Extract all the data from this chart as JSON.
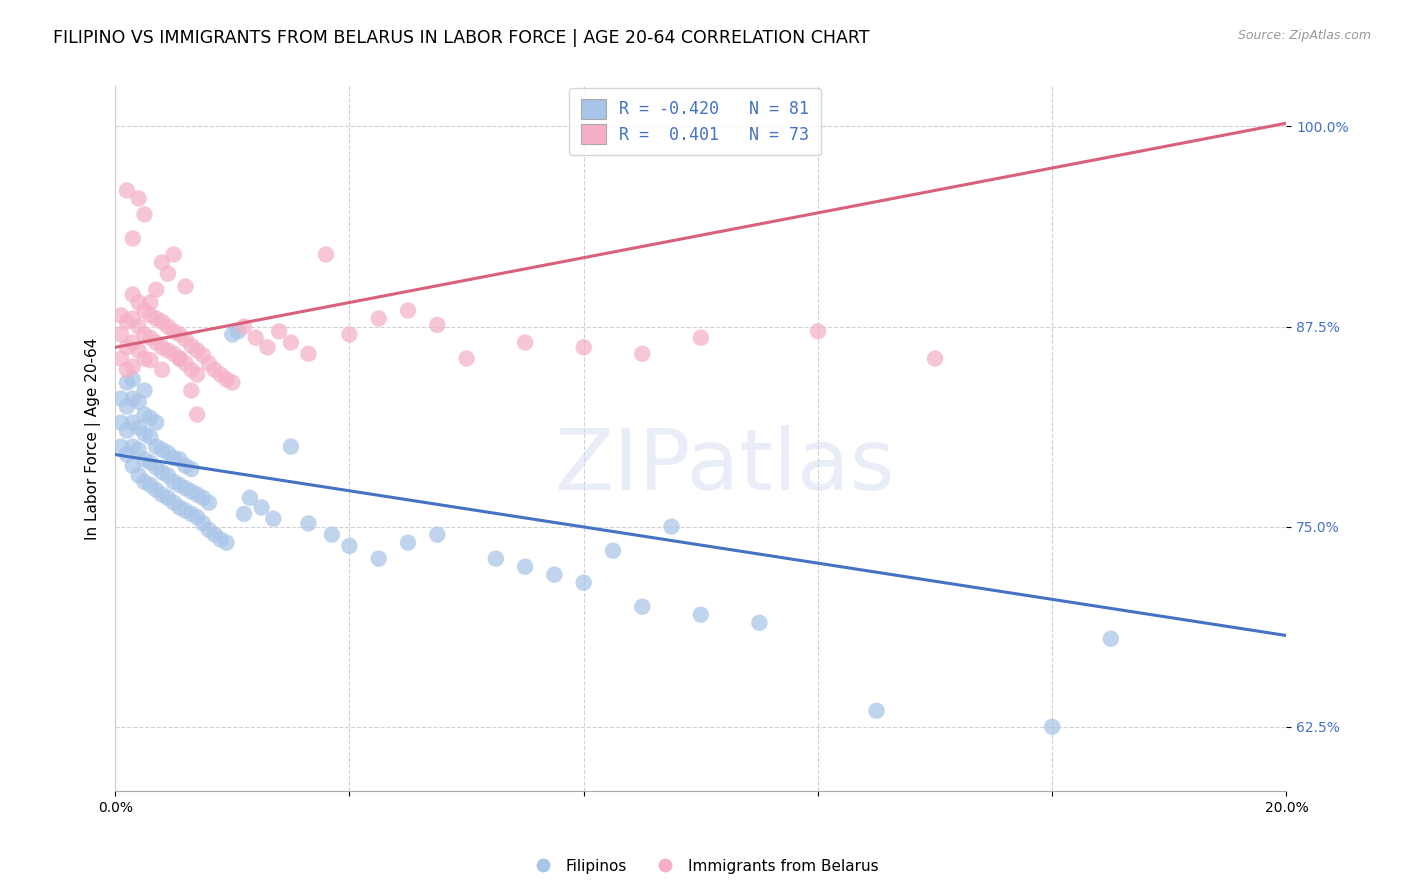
{
  "title": "FILIPINO VS IMMIGRANTS FROM BELARUS IN LABOR FORCE | AGE 20-64 CORRELATION CHART",
  "source": "Source: ZipAtlas.com",
  "ylabel": "In Labor Force | Age 20-64",
  "xlim": [
    0.0,
    0.2
  ],
  "ylim": [
    0.585,
    1.025
  ],
  "xtick_positions": [
    0.0,
    0.04,
    0.08,
    0.12,
    0.16,
    0.2
  ],
  "xtick_labels": [
    "0.0%",
    "",
    "",
    "",
    "",
    "20.0%"
  ],
  "ytick_positions": [
    0.625,
    0.75,
    0.875,
    1.0
  ],
  "ytick_labels": [
    "62.5%",
    "75.0%",
    "87.5%",
    "100.0%"
  ],
  "blue_fill_color": "#a8c4e8",
  "pink_fill_color": "#f5b0c5",
  "blue_line_color": "#4472C4",
  "pink_line_color": "#d9607a",
  "legend_blue_label": "R = -0.420   N = 81",
  "legend_pink_label": "R =  0.401   N = 73",
  "filipinos_label": "Filipinos",
  "belarus_label": "Immigrants from Belarus",
  "watermark": "ZIPatlas",
  "blue_trend_x": [
    0.0,
    0.2
  ],
  "blue_trend_y": [
    0.795,
    0.682
  ],
  "pink_trend_x": [
    0.0,
    0.2
  ],
  "pink_trend_y": [
    0.862,
    1.002
  ],
  "blue_scatter_x": [
    0.001,
    0.001,
    0.001,
    0.002,
    0.002,
    0.002,
    0.002,
    0.003,
    0.003,
    0.003,
    0.003,
    0.003,
    0.004,
    0.004,
    0.004,
    0.004,
    0.005,
    0.005,
    0.005,
    0.005,
    0.005,
    0.006,
    0.006,
    0.006,
    0.006,
    0.007,
    0.007,
    0.007,
    0.007,
    0.008,
    0.008,
    0.008,
    0.009,
    0.009,
    0.009,
    0.01,
    0.01,
    0.01,
    0.011,
    0.011,
    0.011,
    0.012,
    0.012,
    0.012,
    0.013,
    0.013,
    0.013,
    0.014,
    0.014,
    0.015,
    0.015,
    0.016,
    0.016,
    0.017,
    0.018,
    0.019,
    0.02,
    0.021,
    0.022,
    0.023,
    0.025,
    0.027,
    0.03,
    0.033,
    0.037,
    0.04,
    0.045,
    0.05,
    0.055,
    0.065,
    0.07,
    0.075,
    0.08,
    0.09,
    0.1,
    0.11,
    0.13,
    0.16,
    0.17,
    0.085,
    0.095
  ],
  "blue_scatter_y": [
    0.8,
    0.815,
    0.83,
    0.795,
    0.81,
    0.825,
    0.84,
    0.788,
    0.8,
    0.815,
    0.83,
    0.842,
    0.782,
    0.798,
    0.812,
    0.828,
    0.778,
    0.792,
    0.808,
    0.82,
    0.835,
    0.776,
    0.79,
    0.806,
    0.818,
    0.773,
    0.787,
    0.8,
    0.815,
    0.77,
    0.784,
    0.798,
    0.768,
    0.782,
    0.796,
    0.765,
    0.778,
    0.793,
    0.762,
    0.776,
    0.792,
    0.76,
    0.774,
    0.788,
    0.758,
    0.772,
    0.786,
    0.756,
    0.77,
    0.752,
    0.768,
    0.748,
    0.765,
    0.745,
    0.742,
    0.74,
    0.87,
    0.872,
    0.758,
    0.768,
    0.762,
    0.755,
    0.8,
    0.752,
    0.745,
    0.738,
    0.73,
    0.74,
    0.745,
    0.73,
    0.725,
    0.72,
    0.715,
    0.7,
    0.695,
    0.69,
    0.635,
    0.625,
    0.68,
    0.735,
    0.75
  ],
  "pink_scatter_x": [
    0.001,
    0.001,
    0.001,
    0.002,
    0.002,
    0.002,
    0.003,
    0.003,
    0.003,
    0.003,
    0.004,
    0.004,
    0.004,
    0.005,
    0.005,
    0.005,
    0.006,
    0.006,
    0.006,
    0.007,
    0.007,
    0.008,
    0.008,
    0.008,
    0.009,
    0.009,
    0.01,
    0.01,
    0.011,
    0.011,
    0.012,
    0.012,
    0.013,
    0.013,
    0.014,
    0.014,
    0.015,
    0.016,
    0.017,
    0.018,
    0.019,
    0.02,
    0.022,
    0.024,
    0.026,
    0.028,
    0.03,
    0.033,
    0.036,
    0.04,
    0.045,
    0.05,
    0.055,
    0.06,
    0.07,
    0.08,
    0.09,
    0.1,
    0.12,
    0.14,
    0.002,
    0.003,
    0.004,
    0.005,
    0.006,
    0.007,
    0.008,
    0.009,
    0.01,
    0.011,
    0.012,
    0.013,
    0.014
  ],
  "pink_scatter_y": [
    0.882,
    0.87,
    0.855,
    0.878,
    0.862,
    0.848,
    0.895,
    0.88,
    0.865,
    0.85,
    0.89,
    0.875,
    0.86,
    0.885,
    0.87,
    0.855,
    0.882,
    0.868,
    0.854,
    0.88,
    0.865,
    0.878,
    0.862,
    0.848,
    0.875,
    0.86,
    0.872,
    0.858,
    0.87,
    0.855,
    0.867,
    0.852,
    0.863,
    0.848,
    0.86,
    0.845,
    0.857,
    0.852,
    0.848,
    0.845,
    0.842,
    0.84,
    0.875,
    0.868,
    0.862,
    0.872,
    0.865,
    0.858,
    0.92,
    0.87,
    0.88,
    0.885,
    0.876,
    0.855,
    0.865,
    0.862,
    0.858,
    0.868,
    0.872,
    0.855,
    0.96,
    0.93,
    0.955,
    0.945,
    0.89,
    0.898,
    0.915,
    0.908,
    0.92,
    0.855,
    0.9,
    0.835,
    0.82
  ]
}
